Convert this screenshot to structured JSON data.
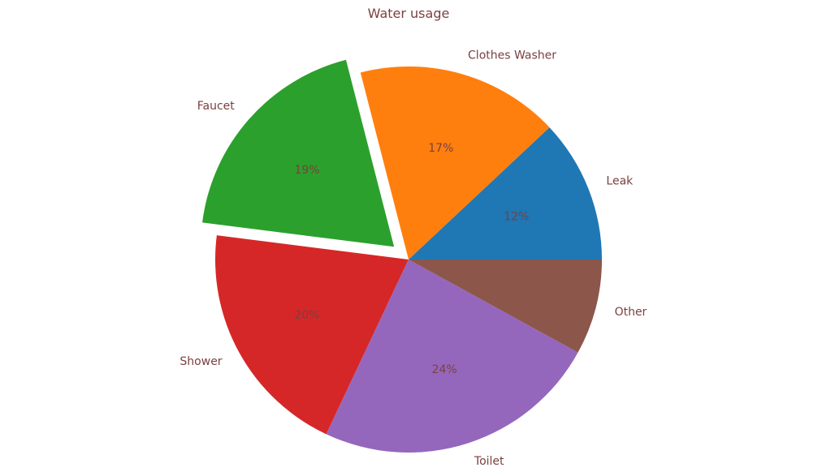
{
  "chart_data": {
    "type": "pie",
    "title": "Water usage",
    "categories": [
      "Leak",
      "Clothes Washer",
      "Faucet",
      "Shower",
      "Toilet",
      "Other"
    ],
    "values": [
      12,
      17,
      19,
      20,
      24,
      8
    ],
    "value_labels": [
      "12%",
      "17%",
      "19%",
      "20%",
      "24%",
      ""
    ],
    "exploded": [
      false,
      false,
      true,
      false,
      false,
      false
    ],
    "colors": [
      "#1f77b4",
      "#ff7f0e",
      "#2ca02c",
      "#d62728",
      "#9467bd",
      "#8c564b"
    ],
    "text_color": "#7b3f3f",
    "start_angle": 0,
    "direction": "counterclockwise"
  }
}
